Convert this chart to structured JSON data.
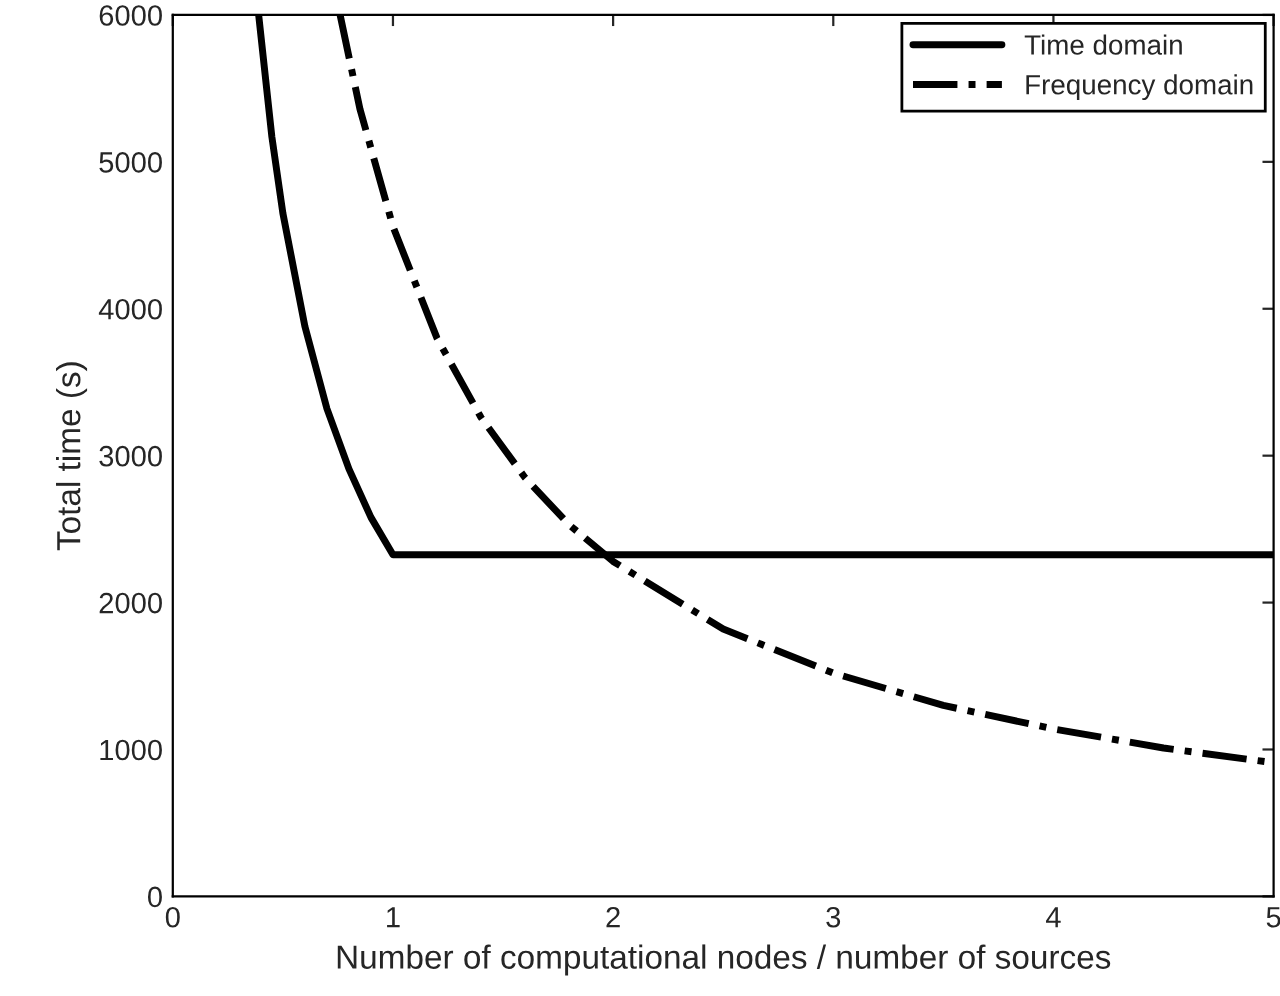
{
  "chart_data": {
    "type": "line",
    "xlabel": "Number of computational nodes / number of sources",
    "ylabel": "Total time (s)",
    "xlim": [
      0,
      5
    ],
    "ylim": [
      0,
      6000
    ],
    "xticks": [
      0,
      1,
      2,
      3,
      4,
      5
    ],
    "yticks": [
      0,
      1000,
      2000,
      3000,
      4000,
      5000,
      6000
    ],
    "legend": "top right",
    "grid": false,
    "series": [
      {
        "name": "Time domain",
        "color": "#000000",
        "line_style": "solid",
        "x": [
          0.39,
          0.45,
          0.5,
          0.6,
          0.7,
          0.8,
          0.9,
          1.0,
          5.0
        ],
        "values": [
          6000,
          5170,
          4650,
          3880,
          3320,
          2910,
          2580,
          2325,
          2325
        ]
      },
      {
        "name": "Frequency domain",
        "color": "#000000",
        "line_style": "dashdot",
        "x": [
          0.76,
          0.85,
          1.0,
          1.2,
          1.4,
          1.6,
          1.8,
          2.0,
          2.5,
          3.0,
          3.5,
          4.0,
          4.5,
          5.0
        ],
        "values": [
          6000,
          5360,
          4560,
          3800,
          3260,
          2850,
          2530,
          2280,
          1820,
          1520,
          1300,
          1140,
          1010,
          910
        ]
      }
    ]
  }
}
